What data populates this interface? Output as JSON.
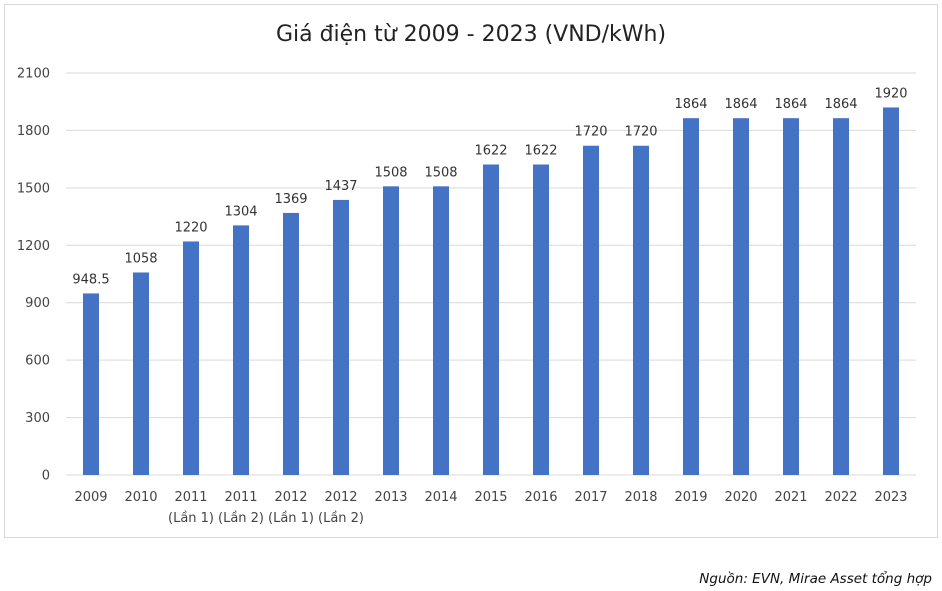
{
  "chart_data": {
    "type": "bar",
    "title": "Giá điện từ 2009 - 2023 (VND/kWh)",
    "categories": [
      [
        "2009"
      ],
      [
        "2010"
      ],
      [
        "2011",
        "(Lần 1)"
      ],
      [
        "2011",
        "(Lần 2)"
      ],
      [
        "2012",
        "(Lần 1)"
      ],
      [
        "2012",
        "(Lần 2)"
      ],
      [
        "2013"
      ],
      [
        "2014"
      ],
      [
        "2015"
      ],
      [
        "2016"
      ],
      [
        "2017"
      ],
      [
        "2018"
      ],
      [
        "2019"
      ],
      [
        "2020"
      ],
      [
        "2021"
      ],
      [
        "2022"
      ],
      [
        "2023"
      ]
    ],
    "values": [
      948.5,
      1058,
      1220,
      1304,
      1369,
      1437,
      1508,
      1508,
      1622,
      1622,
      1720,
      1720,
      1864,
      1864,
      1864,
      1864,
      1920
    ],
    "value_labels": [
      "948.5",
      "1058",
      "1220",
      "1304",
      "1369",
      "1437",
      "1508",
      "1508",
      "1622",
      "1622",
      "1720",
      "1720",
      "1864",
      "1864",
      "1864",
      "1864",
      "1920"
    ],
    "y_ticks": [
      0,
      300,
      600,
      900,
      1200,
      1500,
      1800,
      2100
    ],
    "ylim": [
      0,
      2100
    ],
    "xlabel": "",
    "ylabel": "",
    "grid": true,
    "legend": "none",
    "bar_color": "#4472c4",
    "grid_color": "#d9d9d9"
  },
  "source": "Nguồn: EVN, Mirae Asset tổng hợp"
}
